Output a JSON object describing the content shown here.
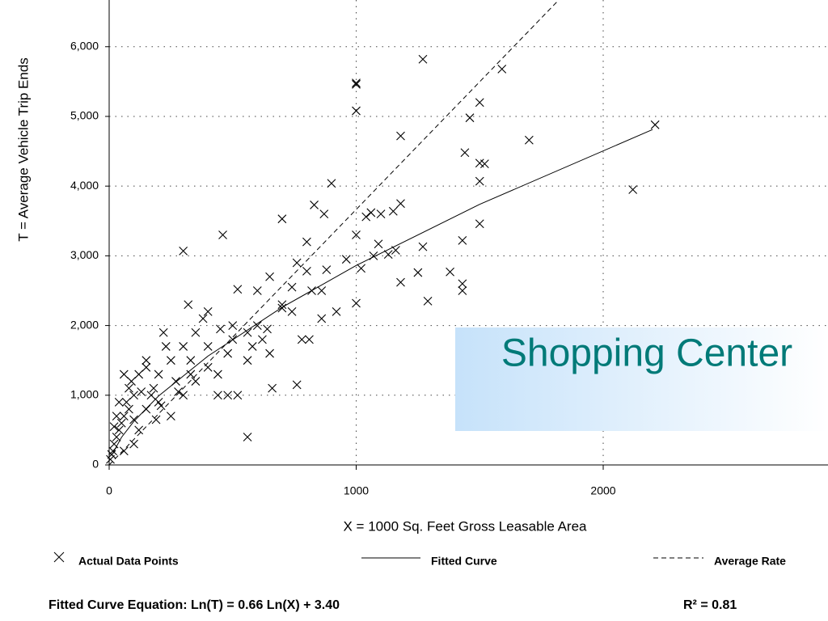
{
  "chart_data": {
    "type": "scatter",
    "x_label": "X = 1000 Sq. Feet Gross Leasable Area",
    "y_label": "T = Average Vehicle Trip Ends",
    "xlim": [
      0,
      2910
    ],
    "ylim": [
      0,
      6670
    ],
    "xticks": [
      0,
      1000,
      2000
    ],
    "yticks": [
      0,
      {
        "value": 1000,
        "label": "1,000"
      },
      {
        "value": 2000,
        "label": "2,000"
      },
      {
        "value": 3000,
        "label": "3,000"
      },
      {
        "value": 4000,
        "label": "4,000"
      },
      {
        "value": 5000,
        "label": "5,000"
      },
      {
        "value": 6000,
        "label": "6,000"
      }
    ],
    "grid": true,
    "legend": "bottom",
    "equation": "Fitted Curve Equation:  Ln(T) = 0.66 Ln(X) + 3.40",
    "r_squared": "R² = 0.81",
    "annotation": "Shopping Center",
    "series": [
      {
        "name": "Actual Data Points",
        "kind": "markers",
        "color": "#000000",
        "x": [
          1000,
          1000,
          1000,
          1270,
          1590,
          1500,
          1460,
          1500,
          1520,
          1700,
          1180,
          1440,
          2210,
          2120,
          1500,
          1500,
          900,
          1180,
          1150,
          1060,
          1040,
          700,
          830,
          870,
          460,
          300,
          1000,
          1090,
          1130,
          1160,
          1270,
          1430,
          1380,
          1250,
          1180,
          1290,
          1430,
          1430,
          1000,
          920,
          860,
          800,
          800,
          760,
          650,
          600,
          520,
          700,
          600,
          560,
          500,
          450,
          400,
          320,
          380,
          350,
          300,
          250,
          230,
          270,
          200,
          180,
          150,
          120,
          100,
          90,
          80,
          70,
          60,
          50,
          40,
          30,
          20,
          10,
          5,
          120,
          150,
          100,
          200,
          250,
          300,
          350,
          400,
          440,
          480,
          520,
          560,
          620,
          650,
          660,
          760,
          780,
          740,
          860,
          560,
          810,
          480,
          400,
          220,
          150,
          130,
          60,
          80,
          40,
          30,
          20,
          15,
          60,
          100,
          170,
          190,
          210,
          280,
          330,
          440,
          330,
          500,
          580,
          640,
          700,
          740,
          820,
          880,
          960,
          1020,
          1070,
          1100
        ],
        "values": [
          5480,
          5460,
          5080,
          5820,
          5680,
          5200,
          4980,
          4330,
          4320,
          4660,
          4720,
          4480,
          4880,
          3950,
          4070,
          3460,
          4040,
          3750,
          3640,
          3620,
          3560,
          3530,
          3730,
          3600,
          3300,
          3070,
          3300,
          3170,
          3020,
          3080,
          3130,
          3220,
          2770,
          2760,
          2620,
          2350,
          2600,
          2500,
          2320,
          2200,
          2500,
          2780,
          3200,
          2900,
          2700,
          2500,
          2520,
          2250,
          2000,
          1900,
          1800,
          1950,
          2200,
          2300,
          2100,
          1900,
          1700,
          1500,
          1700,
          1200,
          1300,
          1100,
          1400,
          1300,
          1000,
          1200,
          800,
          900,
          700,
          600,
          500,
          400,
          300,
          150,
          80,
          500,
          800,
          650,
          900,
          700,
          1000,
          1200,
          1400,
          1000,
          1000,
          1000,
          1500,
          1800,
          1600,
          1100,
          1150,
          1800,
          2200,
          2100,
          400,
          1800,
          1600,
          1700,
          1900,
          1500,
          1050,
          1300,
          1100,
          900,
          700,
          550,
          200,
          200,
          300,
          1000,
          650,
          850,
          1050,
          1300,
          1300,
          1500,
          2000,
          1700,
          1950,
          2300,
          2550,
          2500,
          2800,
          2950,
          2820,
          3000,
          3600
        ]
      },
      {
        "name": "Fitted Curve",
        "kind": "line",
        "style": "solid",
        "color": "#000000",
        "x": [
          10,
          50,
          100,
          200,
          400,
          700,
          1000,
          1500,
          2200
        ],
        "values": [
          137,
          396,
          626,
          989,
          1562,
          2261,
          2861,
          3739,
          4812
        ]
      },
      {
        "name": "Average Rate",
        "kind": "line",
        "style": "dashed",
        "color": "#000000",
        "x": [
          0,
          1820
        ],
        "values": [
          0,
          6670
        ]
      }
    ]
  }
}
